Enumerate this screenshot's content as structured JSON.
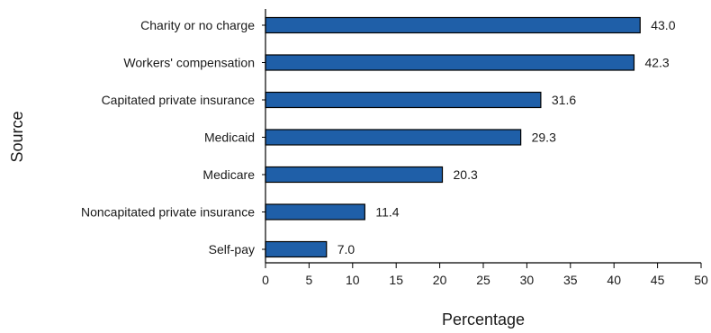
{
  "colors": {
    "bar_fill": "#1f5fa8",
    "bar_stroke": "#000000"
  },
  "chart_data": {
    "type": "bar",
    "orientation": "horizontal",
    "categories": [
      "Charity or no charge",
      "Workers' compensation",
      "Capitated private insurance",
      "Medicaid",
      "Medicare",
      "Noncapitated private insurance",
      "Self-pay"
    ],
    "values": [
      43.0,
      42.3,
      31.6,
      29.3,
      20.3,
      11.4,
      7.0
    ],
    "value_labels": [
      "43.0",
      "42.3",
      "31.6",
      "29.3",
      "20.3",
      "11.4",
      "7.0"
    ],
    "xlabel": "Percentage",
    "ylabel": "Source",
    "xlim": [
      0,
      50
    ],
    "xticks": [
      0,
      5,
      10,
      15,
      20,
      25,
      30,
      35,
      40,
      45,
      50
    ],
    "grid": false,
    "legend": "none"
  }
}
